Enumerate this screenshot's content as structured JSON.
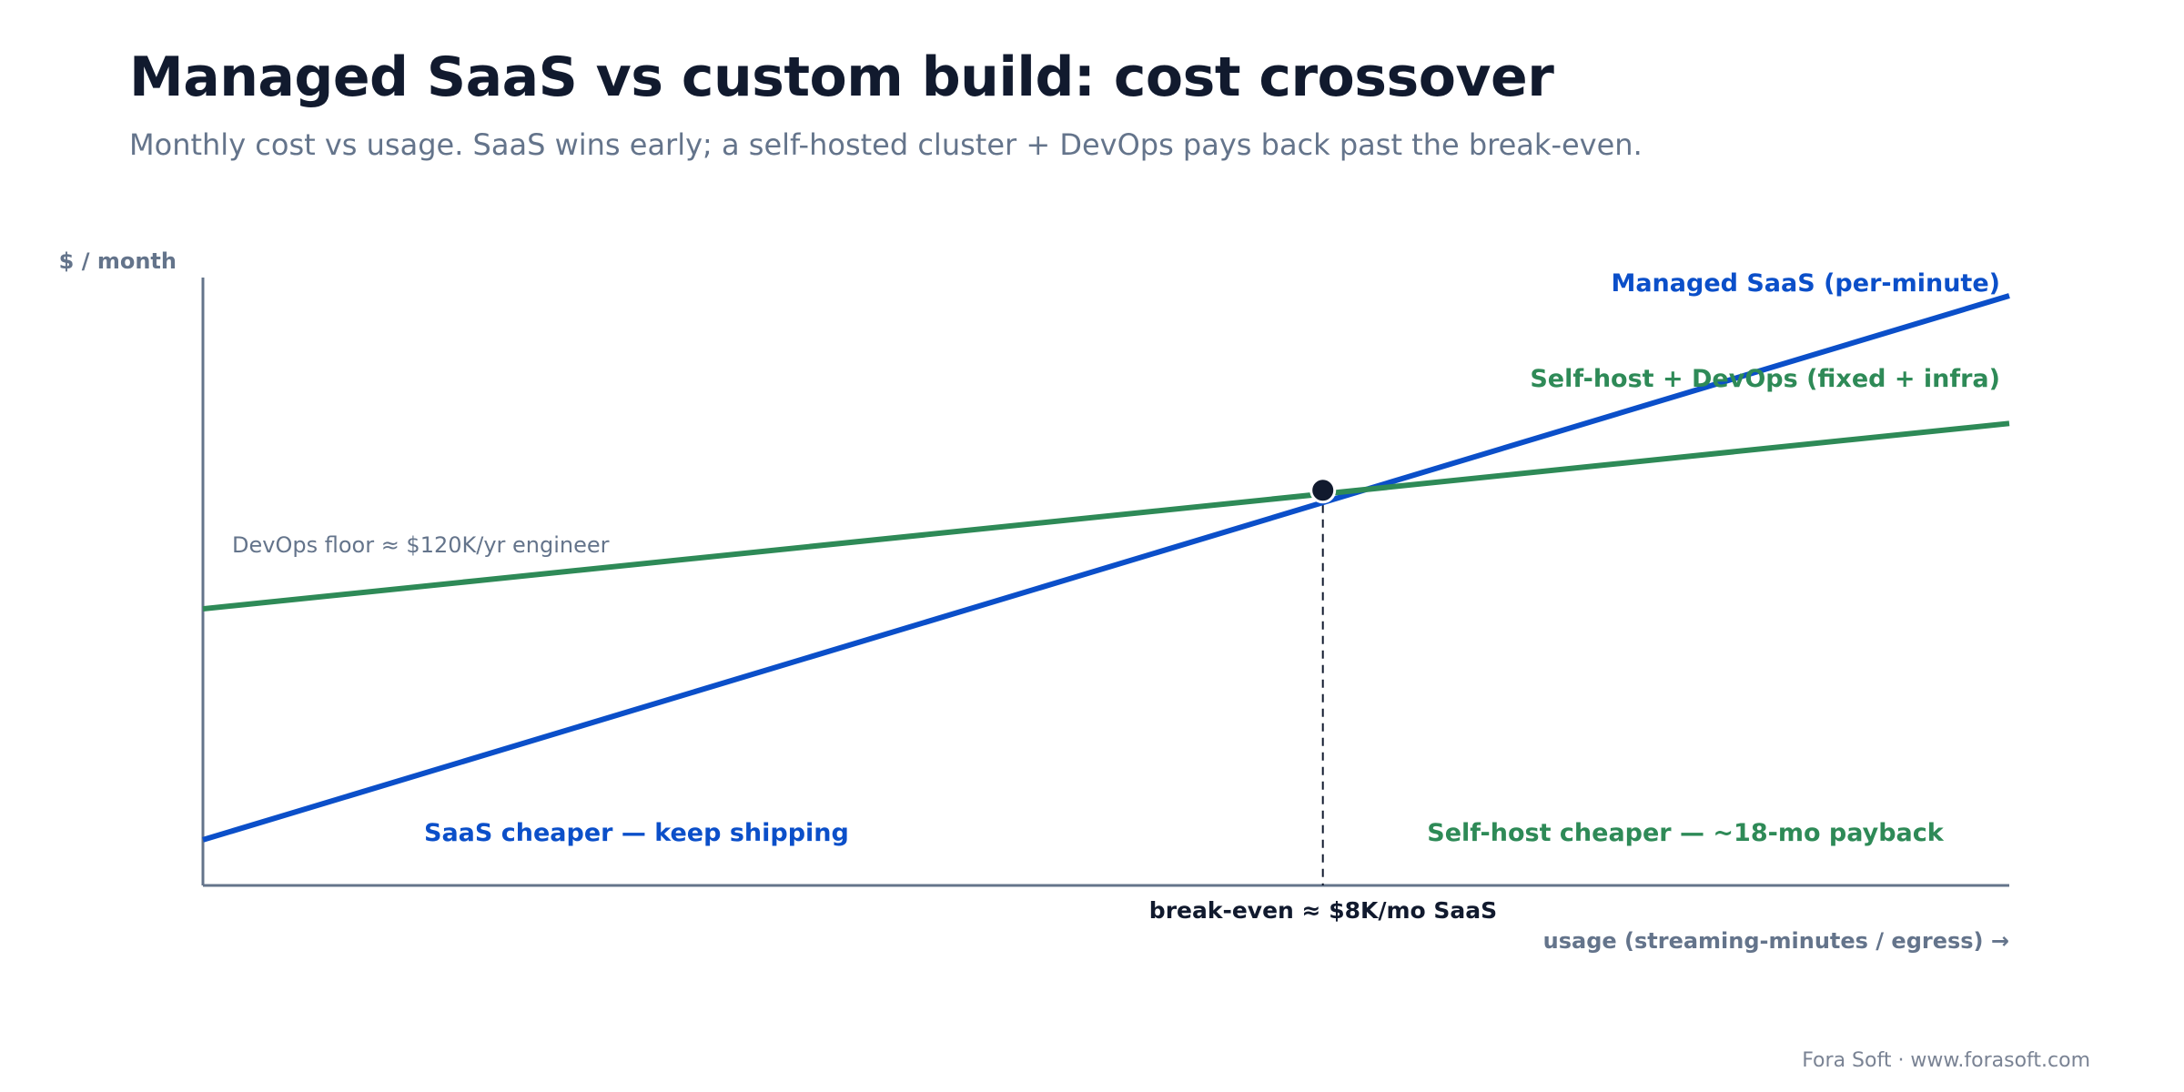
{
  "header": {
    "title": "Managed SaaS vs custom build: cost crossover",
    "subtitle": "Monthly cost vs usage. SaaS wins early; a self-hosted cluster + DevOps pays back past the break-even."
  },
  "chart_data": {
    "type": "line",
    "ylabel": "$ / month",
    "xlabel": "usage (streaming-minutes / egress) →",
    "xlim": [
      0,
      100
    ],
    "ylim": [
      0,
      100
    ],
    "grid": false,
    "series": [
      {
        "name": "Managed SaaS (per-minute)",
        "color": "#0b4fc9",
        "x": [
          0,
          100
        ],
        "y": [
          7.5,
          97
        ]
      },
      {
        "name": "Self-host + DevOps (fixed + infra)",
        "color": "#2e8a57",
        "x": [
          0,
          100
        ],
        "y": [
          45.5,
          76
        ]
      }
    ],
    "break_even": {
      "x": 62,
      "y": 65,
      "label": "break-even ≈ $8K/mo SaaS",
      "color": "#111a2e"
    },
    "annotations": {
      "devops_floor": "DevOps floor ≈ $120K/yr engineer",
      "saas_region": "SaaS cheaper — keep shipping",
      "selfhost_region": "Self-host cheaper — ~18-mo payback"
    },
    "axis_color": "#64748b"
  },
  "footer": {
    "credit": "Fora Soft · www.forasoft.com"
  }
}
